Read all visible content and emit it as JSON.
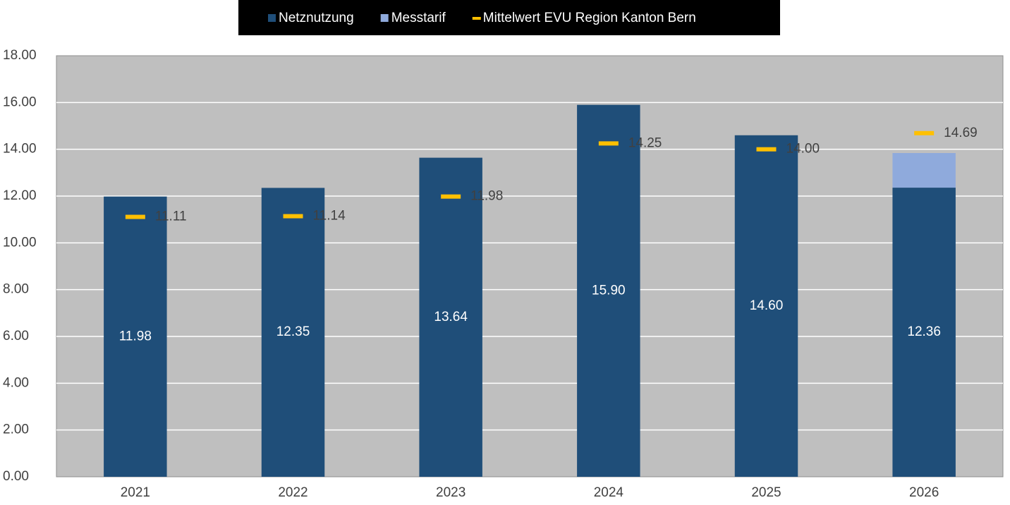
{
  "chart_data": {
    "type": "bar",
    "categories": [
      "2021",
      "2022",
      "2023",
      "2024",
      "2025",
      "2026"
    ],
    "series": [
      {
        "name": "Netznutzung",
        "color": "#1f4e79",
        "type": "bar",
        "values": [
          11.98,
          12.35,
          13.64,
          15.9,
          14.6,
          12.36
        ],
        "value_labels": [
          "11.98",
          "12.35",
          "13.64",
          "15.90",
          "14.60",
          "12.36"
        ]
      },
      {
        "name": "Messtarif",
        "color": "#8faadc",
        "type": "bar",
        "values": [
          null,
          null,
          null,
          null,
          null,
          1.48
        ]
      },
      {
        "name": "Mittelwert EVU Region Kanton Bern",
        "color": "#ffc000",
        "type": "marker",
        "values": [
          11.11,
          11.14,
          11.98,
          14.25,
          14.0,
          14.69
        ],
        "value_labels": [
          "11.11",
          "11.14",
          "11.98",
          "14.25",
          "14.00",
          "14.69"
        ]
      }
    ],
    "stacked": true,
    "ylim": [
      0,
      18
    ],
    "yticks": [
      {
        "value": 0,
        "label": "0.00"
      },
      {
        "value": 2,
        "label": "2.00"
      },
      {
        "value": 4,
        "label": "4.00"
      },
      {
        "value": 6,
        "label": "6.00"
      },
      {
        "value": 8,
        "label": "8.00"
      },
      {
        "value": 10,
        "label": "10.00"
      },
      {
        "value": 12,
        "label": "12.00"
      },
      {
        "value": 14,
        "label": "14.00"
      },
      {
        "value": 16,
        "label": "16.00"
      },
      {
        "value": 18,
        "label": "18.00"
      }
    ],
    "grid": true,
    "legend": "top"
  }
}
